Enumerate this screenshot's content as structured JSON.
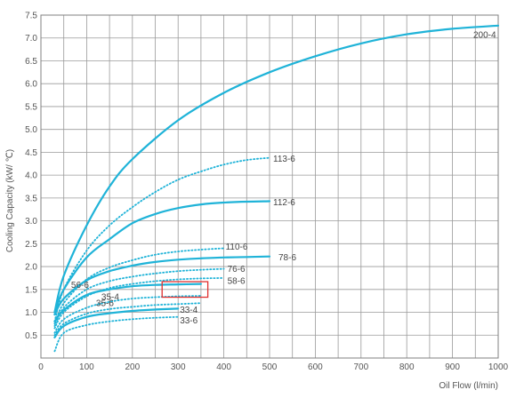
{
  "chart_data": {
    "type": "line",
    "xlabel": "Oil Flow (l/min)",
    "ylabel": "Cooling Capacity  (kW/ ℃)",
    "xlim": [
      0,
      1000
    ],
    "ylim": [
      0,
      7.5
    ],
    "x_ticks": [
      "0",
      "100",
      "200",
      "300",
      "400",
      "500",
      "600",
      "700",
      "800",
      "900",
      "1000"
    ],
    "y_ticks": [
      "0.5",
      "1.0",
      "1.5",
      "2.0",
      "2.5",
      "3.0",
      "3.5",
      "4.0",
      "4.5",
      "5.0",
      "5.5",
      "6.0",
      "6.5",
      "7.0",
      "7.5"
    ],
    "grid": true,
    "line_color": "#1fb3d8",
    "highlight_box": {
      "x_range": [
        265,
        365
      ],
      "y_range": [
        1.33,
        1.67
      ],
      "color": "#e03030"
    },
    "series": [
      {
        "name": "200-4",
        "style": "solid",
        "x": [
          30,
          50,
          100,
          150,
          200,
          300,
          400,
          500,
          600,
          700,
          800,
          900,
          1000
        ],
        "y": [
          1.0,
          1.8,
          2.9,
          3.75,
          4.35,
          5.2,
          5.8,
          6.25,
          6.6,
          6.88,
          7.08,
          7.2,
          7.27
        ]
      },
      {
        "name": "113-6",
        "style": "dotted",
        "x": [
          30,
          50,
          100,
          150,
          200,
          250,
          300,
          350,
          400,
          450,
          500
        ],
        "y": [
          0.8,
          1.5,
          2.35,
          2.9,
          3.3,
          3.63,
          3.9,
          4.08,
          4.23,
          4.33,
          4.38
        ]
      },
      {
        "name": "112-6",
        "style": "solid",
        "x": [
          30,
          50,
          100,
          150,
          200,
          250,
          300,
          350,
          400,
          450,
          500
        ],
        "y": [
          1.0,
          1.5,
          2.2,
          2.6,
          2.95,
          3.15,
          3.28,
          3.36,
          3.4,
          3.42,
          3.43
        ]
      },
      {
        "name": "110-6",
        "style": "dotted",
        "x": [
          30,
          50,
          100,
          150,
          200,
          250,
          300,
          350,
          400
        ],
        "y": [
          0.75,
          1.2,
          1.72,
          1.98,
          2.14,
          2.26,
          2.33,
          2.37,
          2.4
        ]
      },
      {
        "name": "78-6",
        "style": "solid",
        "x": [
          30,
          50,
          100,
          150,
          200,
          250,
          300,
          350,
          400,
          450,
          500
        ],
        "y": [
          0.95,
          1.3,
          1.7,
          1.9,
          2.02,
          2.1,
          2.15,
          2.18,
          2.2,
          2.21,
          2.22
        ]
      },
      {
        "name": "76-6",
        "style": "dotted",
        "x": [
          30,
          50,
          100,
          150,
          200,
          250,
          300,
          350,
          400
        ],
        "y": [
          0.7,
          1.1,
          1.5,
          1.68,
          1.78,
          1.85,
          1.9,
          1.93,
          1.95
        ]
      },
      {
        "name": "58-6",
        "style": "dotted",
        "x": [
          30,
          50,
          100,
          150,
          200,
          250,
          300,
          350,
          400
        ],
        "y": [
          0.65,
          1.0,
          1.35,
          1.53,
          1.62,
          1.68,
          1.72,
          1.74,
          1.75
        ]
      },
      {
        "name": "56-6",
        "style": "solid",
        "x": [
          30,
          50,
          100,
          150,
          200,
          250,
          300,
          350
        ],
        "y": [
          0.8,
          1.05,
          1.38,
          1.5,
          1.57,
          1.6,
          1.61,
          1.62
        ]
      },
      {
        "name": "35-4",
        "style": "dotted",
        "x": [
          30,
          50,
          100,
          150,
          200,
          250,
          300,
          350
        ],
        "y": [
          0.55,
          0.85,
          1.1,
          1.23,
          1.3,
          1.33,
          1.35,
          1.36
        ]
      },
      {
        "name": "35-6",
        "style": "dotted",
        "x": [
          30,
          50,
          100,
          150,
          200,
          250,
          300,
          350
        ],
        "y": [
          0.5,
          0.75,
          0.97,
          1.07,
          1.12,
          1.16,
          1.18,
          1.2
        ]
      },
      {
        "name": "33-4",
        "style": "solid",
        "x": [
          30,
          50,
          100,
          150,
          200,
          250,
          300
        ],
        "y": [
          0.45,
          0.7,
          0.9,
          0.98,
          1.03,
          1.06,
          1.08
        ]
      },
      {
        "name": "33-6",
        "style": "dotted",
        "x": [
          30,
          50,
          100,
          150,
          200,
          250,
          300
        ],
        "y": [
          0.15,
          0.55,
          0.72,
          0.8,
          0.85,
          0.88,
          0.9
        ]
      }
    ]
  }
}
